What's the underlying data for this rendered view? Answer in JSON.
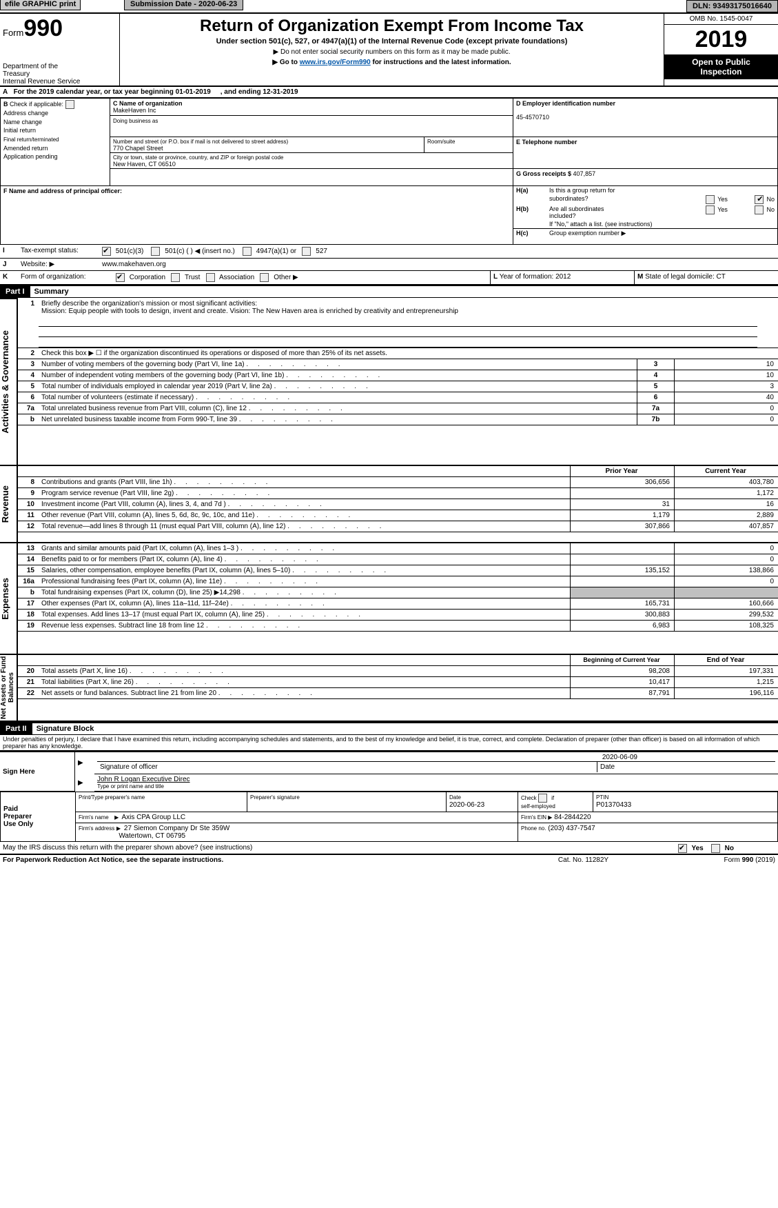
{
  "top": {
    "efile": "efile GRAPHIC print",
    "submission_label": "Submission Date - ",
    "submission_date": "2020-06-23",
    "dln_label": "DLN: ",
    "dln": "93493175016640"
  },
  "header": {
    "form_prefix": "Form",
    "form_num": "990",
    "dept1": "Department of the",
    "dept2": "Treasury",
    "dept3": "Internal Revenue Service",
    "title": "Return of Organization Exempt From Income Tax",
    "sub1": "Under section 501(c), 527, or 4947(a)(1) of the Internal Revenue Code (except private foundations)",
    "sub2": "▶ Do not enter social security numbers on this form as it may be made public.",
    "sub3_pre": "▶ Go to ",
    "sub3_link": "www.irs.gov/Form990",
    "sub3_post": " for instructions and the latest information.",
    "omb": "OMB No. 1545-0047",
    "year": "2019",
    "open1": "Open to Public",
    "open2": "Inspection"
  },
  "rowA": {
    "prefix": "A",
    "text1": "For the 2019 calendar year, or tax year beginning ",
    "begin": "01-01-2019",
    "text2": ", and ending ",
    "end": "12-31-2019"
  },
  "B": {
    "hdr": "B",
    "check_if": "Check if applicable:",
    "items": [
      "Address change",
      "Name change",
      "Initial return",
      "Final return/terminated",
      "Amended return",
      "Application pending"
    ]
  },
  "C": {
    "label": "C Name of organization",
    "name": "MakeHaven Inc",
    "dba_label": "Doing business as",
    "addr_label": "Number and street (or P.O. box if mail is not delivered to street address)",
    "addr": "770 Chapel Street",
    "room_label": "Room/suite",
    "city_label": "City or town, state or province, country, and ZIP or foreign postal code",
    "city": "New Haven, CT  06510"
  },
  "D": {
    "label": "D Employer identification number",
    "value": "45-4570710"
  },
  "E": {
    "label": "E Telephone number",
    "value": ""
  },
  "F": {
    "label": "F  Name and address of principal officer:",
    "value": ""
  },
  "G": {
    "label": "G Gross receipts $ ",
    "value": "407,857"
  },
  "H": {
    "a": "H(a)",
    "a_text1": "Is this a group return for",
    "a_text2": "subordinates?",
    "b": "H(b)",
    "b_text1": "Are all subordinates",
    "b_text2": "included?",
    "b_note": "If \"No,\" attach a list. (see instructions)",
    "c": "H(c)",
    "c_text": "Group exemption number ▶",
    "yes": "Yes",
    "no": "No"
  },
  "I": {
    "label": "I",
    "text": "Tax-exempt status:",
    "opts": [
      "501(c)(3)",
      "501(c) ( ) ◀ (insert no.)",
      "4947(a)(1) or",
      "527"
    ]
  },
  "J": {
    "label": "J",
    "text": "Website: ▶",
    "value": "www.makehaven.org"
  },
  "K": {
    "label": "K",
    "text": "Form of organization:",
    "opts": [
      "Corporation",
      "Trust",
      "Association",
      "Other ▶"
    ]
  },
  "L": {
    "label": "L",
    "text": "Year of formation: ",
    "value": "2012"
  },
  "M": {
    "label": "M",
    "text": "State of legal domicile: ",
    "value": "CT"
  },
  "partI": {
    "tag": "Part I",
    "title": "Summary"
  },
  "mission": {
    "num": "1",
    "label": "Briefly describe the organization's mission or most significant activities:",
    "text": "Mission: Equip people with tools to design, invent and create. Vision: The New Haven area is enriched by creativity and entrepreneurship"
  },
  "line2": {
    "num": "2",
    "text": "Check this box ▶ ☐  if the organization discontinued its operations or disposed of more than 25% of its net assets."
  },
  "lines_gov": [
    {
      "num": "3",
      "text": "Number of voting members of the governing body (Part VI, line 1a)",
      "key": "3",
      "val": "10"
    },
    {
      "num": "4",
      "text": "Number of independent voting members of the governing body (Part VI, line 1b)",
      "key": "4",
      "val": "10"
    },
    {
      "num": "5",
      "text": "Total number of individuals employed in calendar year 2019 (Part V, line 2a)",
      "key": "5",
      "val": "3"
    },
    {
      "num": "6",
      "text": "Total number of volunteers (estimate if necessary)",
      "key": "6",
      "val": "40"
    },
    {
      "num": "7a",
      "text": "Total unrelated business revenue from Part VIII, column (C), line 12",
      "key": "7a",
      "val": "0"
    },
    {
      "num": "b",
      "text": "Net unrelated business taxable income from Form 990-T, line 39",
      "key": "7b",
      "val": "0"
    }
  ],
  "col_hdrs": {
    "prior": "Prior Year",
    "current": "Current Year"
  },
  "lines_rev": [
    {
      "num": "8",
      "text": "Contributions and grants (Part VIII, line 1h)",
      "prior": "306,656",
      "cur": "403,780"
    },
    {
      "num": "9",
      "text": "Program service revenue (Part VIII, line 2g)",
      "prior": "",
      "cur": "1,172"
    },
    {
      "num": "10",
      "text": "Investment income (Part VIII, column (A), lines 3, 4, and 7d )",
      "prior": "31",
      "cur": "16"
    },
    {
      "num": "11",
      "text": "Other revenue (Part VIII, column (A), lines 5, 6d, 8c, 9c, 10c, and 11e)",
      "prior": "1,179",
      "cur": "2,889"
    },
    {
      "num": "12",
      "text": "Total revenue—add lines 8 through 11 (must equal Part VIII, column (A), line 12)",
      "prior": "307,866",
      "cur": "407,857"
    }
  ],
  "lines_exp": [
    {
      "num": "13",
      "text": "Grants and similar amounts paid (Part IX, column (A), lines 1–3 )",
      "prior": "",
      "cur": "0"
    },
    {
      "num": "14",
      "text": "Benefits paid to or for members (Part IX, column (A), line 4)",
      "prior": "",
      "cur": "0"
    },
    {
      "num": "15",
      "text": "Salaries, other compensation, employee benefits (Part IX, column (A), lines 5–10)",
      "prior": "135,152",
      "cur": "138,866"
    },
    {
      "num": "16a",
      "text": "Professional fundraising fees (Part IX, column (A), line 11e)",
      "prior": "",
      "cur": "0"
    },
    {
      "num": "b",
      "text": "Total fundraising expenses (Part IX, column (D), line 25) ▶14,298",
      "prior": "SHADE",
      "cur": "SHADE"
    },
    {
      "num": "17",
      "text": "Other expenses (Part IX, column (A), lines 11a–11d, 11f–24e)",
      "prior": "165,731",
      "cur": "160,666"
    },
    {
      "num": "18",
      "text": "Total expenses. Add lines 13–17 (must equal Part IX, column (A), line 25)",
      "prior": "300,883",
      "cur": "299,532"
    },
    {
      "num": "19",
      "text": "Revenue less expenses. Subtract line 18 from line 12",
      "prior": "6,983",
      "cur": "108,325"
    }
  ],
  "col_hdrs2": {
    "begin": "Beginning of Current Year",
    "end": "End of Year"
  },
  "lines_na": [
    {
      "num": "20",
      "text": "Total assets (Part X, line 16)",
      "prior": "98,208",
      "cur": "197,331"
    },
    {
      "num": "21",
      "text": "Total liabilities (Part X, line 26)",
      "prior": "10,417",
      "cur": "1,215"
    },
    {
      "num": "22",
      "text": "Net assets or fund balances. Subtract line 21 from line 20",
      "prior": "87,791",
      "cur": "196,116"
    }
  ],
  "vtabs": {
    "gov": "Activities & Governance",
    "rev": "Revenue",
    "exp": "Expenses",
    "na": "Net Assets or Fund Balances"
  },
  "partII": {
    "tag": "Part II",
    "title": "Signature Block"
  },
  "perjury": "Under penalties of perjury, I declare that I have examined this return, including accompanying schedules and statements, and to the best of my knowledge and belief, it is true, correct, and complete. Declaration of preparer (other than officer) is based on all information of which preparer has any knowledge.",
  "sign": {
    "here": "Sign Here",
    "sig_officer_label": "Signature of officer",
    "date": "2020-06-09",
    "date_label": "Date",
    "name": "John R Logan  Executive Direc",
    "name_label": "Type or print name and title"
  },
  "paid": {
    "left1": "Paid",
    "left2": "Preparer",
    "left3": "Use Only",
    "h1": "Print/Type preparer's name",
    "h2": "Preparer's signature",
    "h3": "Date",
    "h3v": "2020-06-23",
    "h4a": "Check",
    "h4b": "if",
    "h4c": "self-employed",
    "h5": "PTIN",
    "h5v": "P01370433",
    "firm_name_l": "Firm's name",
    "firm_name": "Axis CPA Group LLC",
    "firm_ein_l": "Firm's EIN ▶",
    "firm_ein": "84-2844220",
    "firm_addr_l": "Firm's address",
    "firm_addr1": "27 Siemon Company Dr Ste 359W",
    "firm_addr2": "Watertown, CT  06795",
    "phone_l": "Phone no.",
    "phone": "(203) 437-7547"
  },
  "discuss": {
    "text": "May the IRS discuss this return with the preparer shown above? (see instructions)",
    "yes": "Yes",
    "no": "No"
  },
  "footer": {
    "left": "For Paperwork Reduction Act Notice, see the separate instructions.",
    "mid": "Cat. No. 11282Y",
    "right_pre": "Form ",
    "right_b": "990",
    "right_post": " (2019)"
  }
}
